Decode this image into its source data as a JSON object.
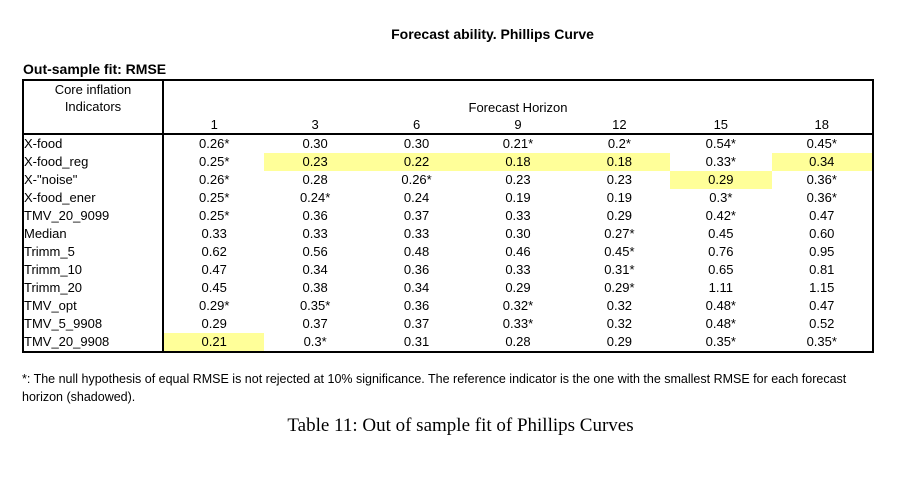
{
  "page": {
    "title": "Forecast ability. Phillips Curve",
    "section_label": "Out-sample fit: RMSE",
    "footnote_line1": "*: The null hypothesis of equal RMSE is not rejected at 10% significance. The reference indicator is the one with the smallest RMSE for each forecast",
    "footnote_line2": "horizon (shadowed).",
    "caption": "Table 11: Out of sample fit of Phillips Curves"
  },
  "table": {
    "row_header_line1": "Core inflation",
    "row_header_line2": "Indicators",
    "group_header": "Forecast Horizon",
    "horizons": [
      "1",
      "3",
      "6",
      "9",
      "12",
      "15",
      "18"
    ],
    "highlight_color": "#ffff99",
    "rows": [
      {
        "label": "X-food",
        "cells": [
          {
            "v": "0.26*",
            "hl": false
          },
          {
            "v": "0.30",
            "hl": false
          },
          {
            "v": "0.30",
            "hl": false
          },
          {
            "v": "0.21*",
            "hl": false
          },
          {
            "v": "0.2*",
            "hl": false
          },
          {
            "v": "0.54*",
            "hl": false
          },
          {
            "v": "0.45*",
            "hl": false
          }
        ]
      },
      {
        "label": "X-food_reg",
        "cells": [
          {
            "v": "0.25*",
            "hl": false
          },
          {
            "v": "0.23",
            "hl": true
          },
          {
            "v": "0.22",
            "hl": true
          },
          {
            "v": "0.18",
            "hl": true
          },
          {
            "v": "0.18",
            "hl": true
          },
          {
            "v": "0.33*",
            "hl": false
          },
          {
            "v": "0.34",
            "hl": true
          }
        ]
      },
      {
        "label": "X-\"noise\"",
        "cells": [
          {
            "v": "0.26*",
            "hl": false
          },
          {
            "v": "0.28",
            "hl": false
          },
          {
            "v": "0.26*",
            "hl": false
          },
          {
            "v": "0.23",
            "hl": false
          },
          {
            "v": "0.23",
            "hl": false
          },
          {
            "v": "0.29",
            "hl": true
          },
          {
            "v": "0.36*",
            "hl": false
          }
        ]
      },
      {
        "label": "X-food_ener",
        "cells": [
          {
            "v": "0.25*",
            "hl": false
          },
          {
            "v": "0.24*",
            "hl": false
          },
          {
            "v": "0.24",
            "hl": false
          },
          {
            "v": "0.19",
            "hl": false
          },
          {
            "v": "0.19",
            "hl": false
          },
          {
            "v": "0.3*",
            "hl": false
          },
          {
            "v": "0.36*",
            "hl": false
          }
        ]
      },
      {
        "label": "TMV_20_9099",
        "cells": [
          {
            "v": "0.25*",
            "hl": false
          },
          {
            "v": "0.36",
            "hl": false
          },
          {
            "v": "0.37",
            "hl": false
          },
          {
            "v": "0.33",
            "hl": false
          },
          {
            "v": "0.29",
            "hl": false
          },
          {
            "v": "0.42*",
            "hl": false
          },
          {
            "v": "0.47",
            "hl": false
          }
        ]
      },
      {
        "label": "Median",
        "cells": [
          {
            "v": "0.33",
            "hl": false
          },
          {
            "v": "0.33",
            "hl": false
          },
          {
            "v": "0.33",
            "hl": false
          },
          {
            "v": "0.30",
            "hl": false
          },
          {
            "v": "0.27*",
            "hl": false
          },
          {
            "v": "0.45",
            "hl": false
          },
          {
            "v": "0.60",
            "hl": false
          }
        ]
      },
      {
        "label": "Trimm_5",
        "cells": [
          {
            "v": "0.62",
            "hl": false
          },
          {
            "v": "0.56",
            "hl": false
          },
          {
            "v": "0.48",
            "hl": false
          },
          {
            "v": "0.46",
            "hl": false
          },
          {
            "v": "0.45*",
            "hl": false
          },
          {
            "v": "0.76",
            "hl": false
          },
          {
            "v": "0.95",
            "hl": false
          }
        ]
      },
      {
        "label": "Trimm_10",
        "cells": [
          {
            "v": "0.47",
            "hl": false
          },
          {
            "v": "0.34",
            "hl": false
          },
          {
            "v": "0.36",
            "hl": false
          },
          {
            "v": "0.33",
            "hl": false
          },
          {
            "v": "0.31*",
            "hl": false
          },
          {
            "v": "0.65",
            "hl": false
          },
          {
            "v": "0.81",
            "hl": false
          }
        ]
      },
      {
        "label": "Trimm_20",
        "cells": [
          {
            "v": "0.45",
            "hl": false
          },
          {
            "v": "0.38",
            "hl": false
          },
          {
            "v": "0.34",
            "hl": false
          },
          {
            "v": "0.29",
            "hl": false
          },
          {
            "v": "0.29*",
            "hl": false
          },
          {
            "v": "1.11",
            "hl": false
          },
          {
            "v": "1.15",
            "hl": false
          }
        ]
      },
      {
        "label": "TMV_opt",
        "cells": [
          {
            "v": "0.29*",
            "hl": false
          },
          {
            "v": "0.35*",
            "hl": false
          },
          {
            "v": "0.36",
            "hl": false
          },
          {
            "v": "0.32*",
            "hl": false
          },
          {
            "v": "0.32",
            "hl": false
          },
          {
            "v": "0.48*",
            "hl": false
          },
          {
            "v": "0.47",
            "hl": false
          }
        ]
      },
      {
        "label": "TMV_5_9908",
        "cells": [
          {
            "v": "0.29",
            "hl": false
          },
          {
            "v": "0.37",
            "hl": false
          },
          {
            "v": "0.37",
            "hl": false
          },
          {
            "v": "0.33*",
            "hl": false
          },
          {
            "v": "0.32",
            "hl": false
          },
          {
            "v": "0.48*",
            "hl": false
          },
          {
            "v": "0.52",
            "hl": false
          }
        ]
      },
      {
        "label": "TMV_20_9908",
        "cells": [
          {
            "v": "0.21",
            "hl": true
          },
          {
            "v": "0.3*",
            "hl": false
          },
          {
            "v": "0.31",
            "hl": false
          },
          {
            "v": "0.28",
            "hl": false
          },
          {
            "v": "0.29",
            "hl": false
          },
          {
            "v": "0.35*",
            "hl": false
          },
          {
            "v": "0.35*",
            "hl": false
          }
        ]
      }
    ]
  }
}
